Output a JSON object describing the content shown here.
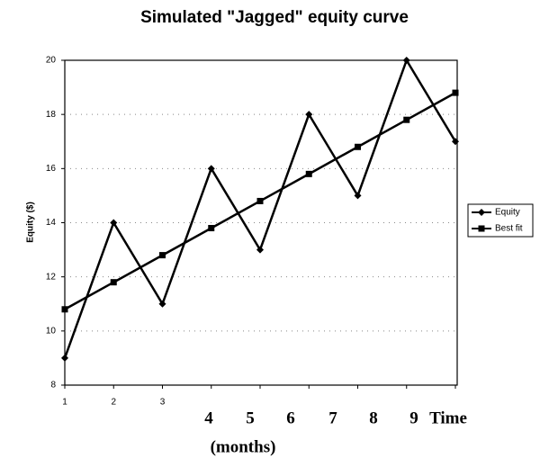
{
  "chart_data": {
    "type": "line",
    "title": "Simulated \"Jagged\" equity curve",
    "y_label": "Equity ($)",
    "x_label": "Time",
    "x_unit": "(months)",
    "categories": [
      "1",
      "2",
      "3",
      "4",
      "5",
      "6",
      "7",
      "8",
      "9"
    ],
    "series": [
      {
        "name": "Equity",
        "color": "#000000",
        "marker": "diamond",
        "values": [
          9,
          14,
          11,
          16,
          13,
          18,
          15,
          20,
          17
        ]
      },
      {
        "name": "Best fit",
        "color": "#000000",
        "marker": "square",
        "values": [
          10.8,
          11.8,
          12.8,
          13.8,
          14.8,
          15.8,
          16.8,
          17.8,
          18.8
        ]
      }
    ],
    "ylim": [
      8,
      20
    ],
    "yticks": [
      8,
      10,
      12,
      14,
      16,
      18,
      20
    ],
    "grid": true,
    "legend": "right"
  }
}
